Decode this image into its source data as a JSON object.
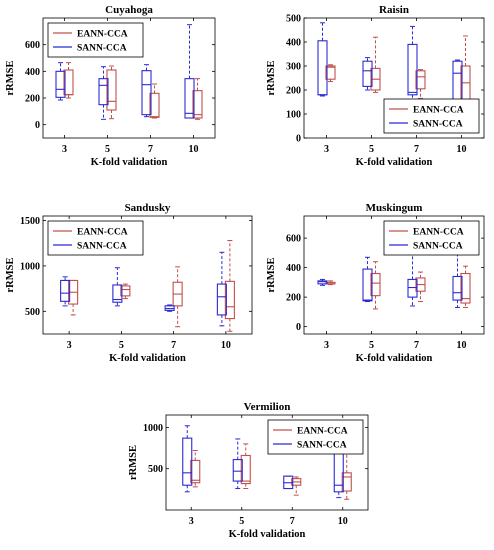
{
  "colors": {
    "eann": "#c0504d",
    "sann": "#2b2bd4"
  },
  "chart_data": [
    {
      "type": "boxplot",
      "title": "Cuyahoga",
      "xlabel": "K-fold validation",
      "ylabel": "rRMSE",
      "categories": [
        "3",
        "5",
        "7",
        "10"
      ],
      "ylim": [
        -100,
        800
      ],
      "yticks": [
        0,
        200,
        400,
        600
      ],
      "legend": "top-left",
      "series": [
        {
          "name": "EANN-CCA",
          "color": "#c0504d",
          "boxes": [
            {
              "min": 200,
              "q1": 225,
              "median": 225,
              "q3": 410,
              "max": 465
            },
            {
              "min": 45,
              "q1": 110,
              "median": 175,
              "q3": 410,
              "max": 440
            },
            {
              "min": 50,
              "q1": 55,
              "median": 60,
              "q3": 235,
              "max": 305
            },
            {
              "min": 40,
              "q1": 50,
              "median": 75,
              "q3": 255,
              "max": 345
            }
          ]
        },
        {
          "name": "SANN-CCA",
          "color": "#2b2bd4",
          "boxes": [
            {
              "min": 185,
              "q1": 205,
              "median": 265,
              "q3": 400,
              "max": 465
            },
            {
              "min": 40,
              "q1": 150,
              "median": 295,
              "q3": 345,
              "max": 435
            },
            {
              "min": 60,
              "q1": 75,
              "median": 300,
              "q3": 405,
              "max": 450
            },
            {
              "min": 50,
              "q1": 50,
              "median": 85,
              "q3": 345,
              "max": 750
            }
          ]
        }
      ]
    },
    {
      "type": "boxplot",
      "title": "Raisin",
      "xlabel": "K-fold validation",
      "ylabel": "rRMSE",
      "categories": [
        "3",
        "5",
        "7",
        "10"
      ],
      "ylim": [
        0,
        500
      ],
      "yticks": [
        0,
        100,
        200,
        300,
        400,
        500
      ],
      "legend": "bottom-right",
      "series": [
        {
          "name": "EANN-CCA",
          "color": "#c0504d",
          "boxes": [
            {
              "min": 235,
              "q1": 245,
              "median": 295,
              "q3": 300,
              "max": 305
            },
            {
              "min": 190,
              "q1": 200,
              "median": 245,
              "q3": 290,
              "max": 420
            },
            {
              "min": 165,
              "q1": 205,
              "median": 255,
              "q3": 280,
              "max": 285
            },
            {
              "min": 95,
              "q1": 160,
              "median": 230,
              "q3": 300,
              "max": 425
            }
          ]
        },
        {
          "name": "SANN-CCA",
          "color": "#2b2bd4",
          "boxes": [
            {
              "min": 175,
              "q1": 180,
              "median": 180,
              "q3": 405,
              "max": 480
            },
            {
              "min": 200,
              "q1": 215,
              "median": 280,
              "q3": 320,
              "max": 335
            },
            {
              "min": 155,
              "q1": 180,
              "median": 190,
              "q3": 390,
              "max": 465
            },
            {
              "min": 80,
              "q1": 160,
              "median": 270,
              "q3": 320,
              "max": 325
            }
          ]
        }
      ]
    },
    {
      "type": "boxplot",
      "title": "Sandusky",
      "xlabel": "K-fold validation",
      "ylabel": "rRMSE",
      "categories": [
        "3",
        "5",
        "7",
        "10"
      ],
      "ylim": [
        250,
        1550
      ],
      "yticks": [
        500,
        1000,
        1500
      ],
      "legend": "top-left",
      "series": [
        {
          "name": "EANN-CCA",
          "color": "#c0504d",
          "boxes": [
            {
              "min": 460,
              "q1": 580,
              "median": 710,
              "q3": 840,
              "max": 840
            },
            {
              "min": 640,
              "q1": 670,
              "median": 740,
              "q3": 780,
              "max": 800
            },
            {
              "min": 330,
              "q1": 560,
              "median": 690,
              "q3": 820,
              "max": 990
            },
            {
              "min": 280,
              "q1": 420,
              "median": 550,
              "q3": 830,
              "max": 1280
            }
          ]
        },
        {
          "name": "SANN-CCA",
          "color": "#2b2bd4",
          "boxes": [
            {
              "min": 560,
              "q1": 610,
              "median": 700,
              "q3": 840,
              "max": 880
            },
            {
              "min": 560,
              "q1": 600,
              "median": 630,
              "q3": 790,
              "max": 980
            },
            {
              "min": 500,
              "q1": 510,
              "median": 530,
              "q3": 560,
              "max": 570
            },
            {
              "min": 340,
              "q1": 460,
              "median": 660,
              "q3": 800,
              "max": 1150
            }
          ]
        }
      ]
    },
    {
      "type": "boxplot",
      "title": "Muskingum",
      "xlabel": "K-fold validation",
      "ylabel": "rRMSE",
      "categories": [
        "3",
        "5",
        "7",
        "10"
      ],
      "ylim": [
        -50,
        750
      ],
      "yticks": [
        0,
        200,
        400,
        600
      ],
      "legend": "top-right",
      "series": [
        {
          "name": "EANN-CCA",
          "color": "#c0504d",
          "boxes": [
            {
              "min": 285,
              "q1": 290,
              "median": 290,
              "q3": 300,
              "max": 310
            },
            {
              "min": 120,
              "q1": 210,
              "median": 295,
              "q3": 360,
              "max": 440
            },
            {
              "min": 170,
              "q1": 240,
              "median": 285,
              "q3": 330,
              "max": 370
            },
            {
              "min": 130,
              "q1": 160,
              "median": 190,
              "q3": 360,
              "max": 410
            }
          ]
        },
        {
          "name": "SANN-CCA",
          "color": "#2b2bd4",
          "boxes": [
            {
              "min": 280,
              "q1": 290,
              "median": 305,
              "q3": 310,
              "max": 320
            },
            {
              "min": 170,
              "q1": 175,
              "median": 180,
              "q3": 390,
              "max": 470
            },
            {
              "min": 140,
              "q1": 200,
              "median": 265,
              "q3": 320,
              "max": 490
            },
            {
              "min": 130,
              "q1": 180,
              "median": 230,
              "q3": 340,
              "max": 540
            }
          ]
        }
      ]
    },
    {
      "type": "boxplot",
      "title": "Vermilion",
      "xlabel": "K-fold validation",
      "ylabel": "rRMSE",
      "categories": [
        "3",
        "5",
        "7",
        "10"
      ],
      "ylim": [
        0,
        1150
      ],
      "yticks": [
        500,
        1000
      ],
      "legend": "top-right",
      "series": [
        {
          "name": "EANN-CCA",
          "color": "#c0504d",
          "boxes": [
            {
              "min": 280,
              "q1": 330,
              "median": 360,
              "q3": 600,
              "max": 720
            },
            {
              "min": 260,
              "q1": 320,
              "median": 350,
              "q3": 660,
              "max": 800
            },
            {
              "min": 180,
              "q1": 300,
              "median": 340,
              "q3": 380,
              "max": 400
            },
            {
              "min": 130,
              "q1": 230,
              "median": 400,
              "q3": 450,
              "max": 700
            }
          ]
        },
        {
          "name": "SANN-CCA",
          "color": "#2b2bd4",
          "boxes": [
            {
              "min": 220,
              "q1": 300,
              "median": 450,
              "q3": 870,
              "max": 1020
            },
            {
              "min": 260,
              "q1": 350,
              "median": 470,
              "q3": 610,
              "max": 860
            },
            {
              "min": 260,
              "q1": 260,
              "median": 330,
              "q3": 410,
              "max": 410
            },
            {
              "min": 150,
              "q1": 220,
              "median": 300,
              "q3": 780,
              "max": 1000
            }
          ]
        }
      ]
    }
  ]
}
